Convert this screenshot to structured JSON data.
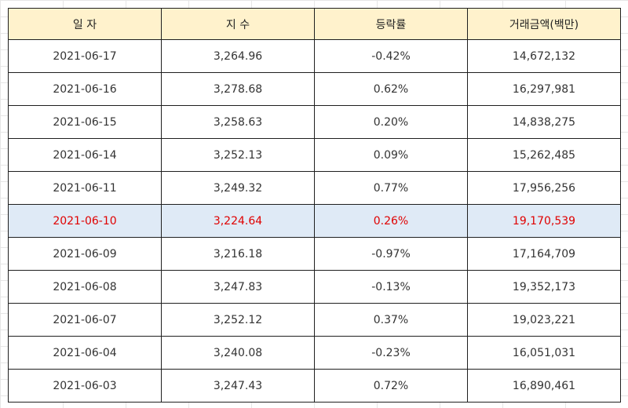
{
  "table": {
    "headers": [
      "일 자",
      "지 수",
      "등락률",
      "거래금액(백만)"
    ],
    "rows": [
      {
        "date": "2021-06-17",
        "index": "3,264.96",
        "change": "-0.42%",
        "amount": "14,672,132"
      },
      {
        "date": "2021-06-16",
        "index": "3,278.68",
        "change": "0.62%",
        "amount": "16,297,981"
      },
      {
        "date": "2021-06-15",
        "index": "3,258.63",
        "change": "0.20%",
        "amount": "14,838,275"
      },
      {
        "date": "2021-06-14",
        "index": "3,252.13",
        "change": "0.09%",
        "amount": "15,262,485"
      },
      {
        "date": "2021-06-11",
        "index": "3,249.32",
        "change": "0.77%",
        "amount": "17,956,256"
      },
      {
        "date": "2021-06-10",
        "index": "3,224.64",
        "change": "0.26%",
        "amount": "19,170,539"
      },
      {
        "date": "2021-06-09",
        "index": "3,216.18",
        "change": "-0.97%",
        "amount": "17,164,709"
      },
      {
        "date": "2021-06-08",
        "index": "3,247.83",
        "change": "-0.13%",
        "amount": "19,352,173"
      },
      {
        "date": "2021-06-07",
        "index": "3,252.12",
        "change": "0.37%",
        "amount": "19,023,221"
      },
      {
        "date": "2021-06-04",
        "index": "3,240.08",
        "change": "-0.23%",
        "amount": "16,051,031"
      },
      {
        "date": "2021-06-03",
        "index": "3,247.43",
        "change": "0.72%",
        "amount": "16,890,461"
      }
    ],
    "highlighted_row_index": 5
  },
  "colors": {
    "header_bg": "#fff2cc",
    "highlight_bg": "#dfeaf6",
    "highlight_text": "#e00000"
  }
}
